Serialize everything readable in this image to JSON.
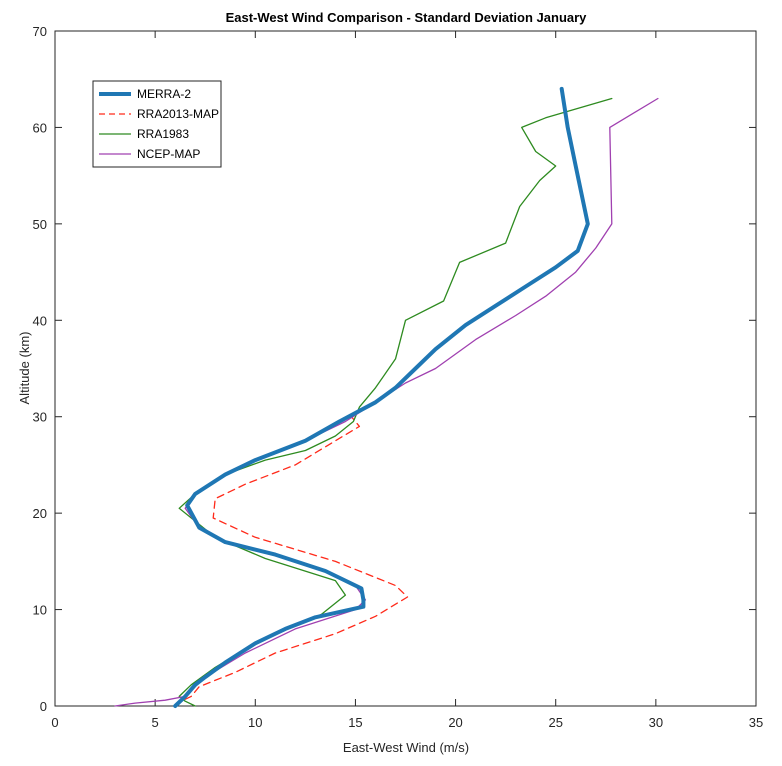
{
  "chart_data": {
    "type": "line",
    "title": "East-West Wind Comparison - Standard Deviation January",
    "xlabel": "East-West Wind (m/s)",
    "ylabel": "Altitude (km)",
    "xlim": [
      0,
      35
    ],
    "ylim": [
      0,
      70
    ],
    "xticks": [
      0,
      5,
      10,
      15,
      20,
      25,
      30,
      35
    ],
    "yticks": [
      0,
      10,
      20,
      30,
      40,
      50,
      60,
      70
    ],
    "grid": false,
    "legend_position": "top-left",
    "series": [
      {
        "name": "MERRA-2",
        "color": "#1f77b4",
        "style": "solid-thick",
        "points": [
          [
            6.0,
            0
          ],
          [
            6.5,
            1
          ],
          [
            7.0,
            2.2
          ],
          [
            7.5,
            3
          ],
          [
            8.5,
            4.5
          ],
          [
            10.0,
            6.5
          ],
          [
            11.5,
            8
          ],
          [
            13.0,
            9.2
          ],
          [
            15.4,
            10.3
          ],
          [
            15.4,
            11
          ],
          [
            15.3,
            12.2
          ],
          [
            13.5,
            14
          ],
          [
            11.0,
            15.7
          ],
          [
            8.5,
            17
          ],
          [
            7.2,
            18.5
          ],
          [
            6.6,
            20.8
          ],
          [
            7.0,
            22
          ],
          [
            8.5,
            24
          ],
          [
            10.0,
            25.5
          ],
          [
            12.5,
            27.5
          ],
          [
            14.2,
            29.5
          ],
          [
            16.0,
            31.5
          ],
          [
            17.0,
            33
          ],
          [
            18.0,
            35
          ],
          [
            19.0,
            37
          ],
          [
            20.5,
            39.5
          ],
          [
            22.0,
            41.5
          ],
          [
            23.5,
            43.5
          ],
          [
            25.0,
            45.5
          ],
          [
            26.1,
            47.2
          ],
          [
            26.6,
            50
          ],
          [
            26.0,
            56
          ],
          [
            25.6,
            60
          ],
          [
            25.3,
            64
          ]
        ]
      },
      {
        "name": "RRA2013-MAP",
        "color": "#ff2a1a",
        "style": "dashed",
        "points": [
          [
            6.0,
            0
          ],
          [
            6.3,
            0.5
          ],
          [
            6.8,
            1
          ],
          [
            7.2,
            2
          ],
          [
            9.0,
            3.5
          ],
          [
            11.0,
            5.5
          ],
          [
            14.0,
            7.5
          ],
          [
            16.0,
            9.3
          ],
          [
            17.6,
            11.3
          ],
          [
            17.0,
            12.5
          ],
          [
            14.0,
            15
          ],
          [
            10.0,
            17.5
          ],
          [
            7.9,
            19.5
          ],
          [
            8.0,
            21.5
          ],
          [
            9.5,
            23
          ],
          [
            12.0,
            25
          ],
          [
            14.0,
            27.5
          ],
          [
            15.2,
            29
          ],
          [
            14.8,
            30
          ]
        ]
      },
      {
        "name": "RRA1983",
        "color": "#2e8b20",
        "style": "solid",
        "points": [
          [
            7.0,
            0
          ],
          [
            6.5,
            0.5
          ],
          [
            6.2,
            1
          ],
          [
            6.8,
            2.2
          ],
          [
            8.0,
            4
          ],
          [
            10.0,
            6.5
          ],
          [
            13.3,
            9.5
          ],
          [
            14.5,
            11.5
          ],
          [
            14.0,
            13
          ],
          [
            10.5,
            15.3
          ],
          [
            8.0,
            17.5
          ],
          [
            6.2,
            20.5
          ],
          [
            7.0,
            22
          ],
          [
            8.5,
            24
          ],
          [
            10.5,
            25.5
          ],
          [
            12.5,
            26.5
          ],
          [
            14.0,
            28
          ],
          [
            14.9,
            29.5
          ],
          [
            15.2,
            31
          ],
          [
            16.0,
            33
          ],
          [
            17.0,
            36
          ],
          [
            17.5,
            40
          ],
          [
            19.4,
            42
          ],
          [
            20.2,
            46
          ],
          [
            22.5,
            48
          ],
          [
            23.2,
            51.8
          ],
          [
            24.2,
            54.5
          ],
          [
            25.0,
            56
          ],
          [
            24.0,
            57.5
          ],
          [
            23.3,
            60
          ],
          [
            24.5,
            61
          ],
          [
            27.8,
            63
          ]
        ]
      },
      {
        "name": "NCEP-MAP",
        "color": "#a040b0",
        "style": "solid",
        "points": [
          [
            3.0,
            0
          ],
          [
            4.0,
            0.3
          ],
          [
            5.5,
            0.6
          ],
          [
            6.5,
            1
          ],
          [
            7.0,
            2
          ],
          [
            7.5,
            3
          ],
          [
            9.5,
            5.5
          ],
          [
            12.0,
            8
          ],
          [
            15.0,
            10
          ],
          [
            15.5,
            11
          ],
          [
            15.0,
            12.5
          ],
          [
            13.5,
            14
          ],
          [
            11.0,
            15.7
          ],
          [
            8.5,
            17
          ],
          [
            7.2,
            18.5
          ],
          [
            6.5,
            20.5
          ],
          [
            7.0,
            22
          ],
          [
            8.5,
            24
          ],
          [
            10.0,
            25.5
          ],
          [
            12.5,
            27.5
          ],
          [
            14.5,
            29.5
          ],
          [
            16.0,
            31.5
          ],
          [
            17.5,
            33.5
          ],
          [
            19.0,
            35
          ],
          [
            21.0,
            38
          ],
          [
            23.0,
            40.5
          ],
          [
            24.5,
            42.5
          ],
          [
            26.0,
            45
          ],
          [
            27.0,
            47.5
          ],
          [
            27.8,
            50
          ],
          [
            27.7,
            60
          ],
          [
            30.1,
            63
          ]
        ]
      }
    ]
  }
}
